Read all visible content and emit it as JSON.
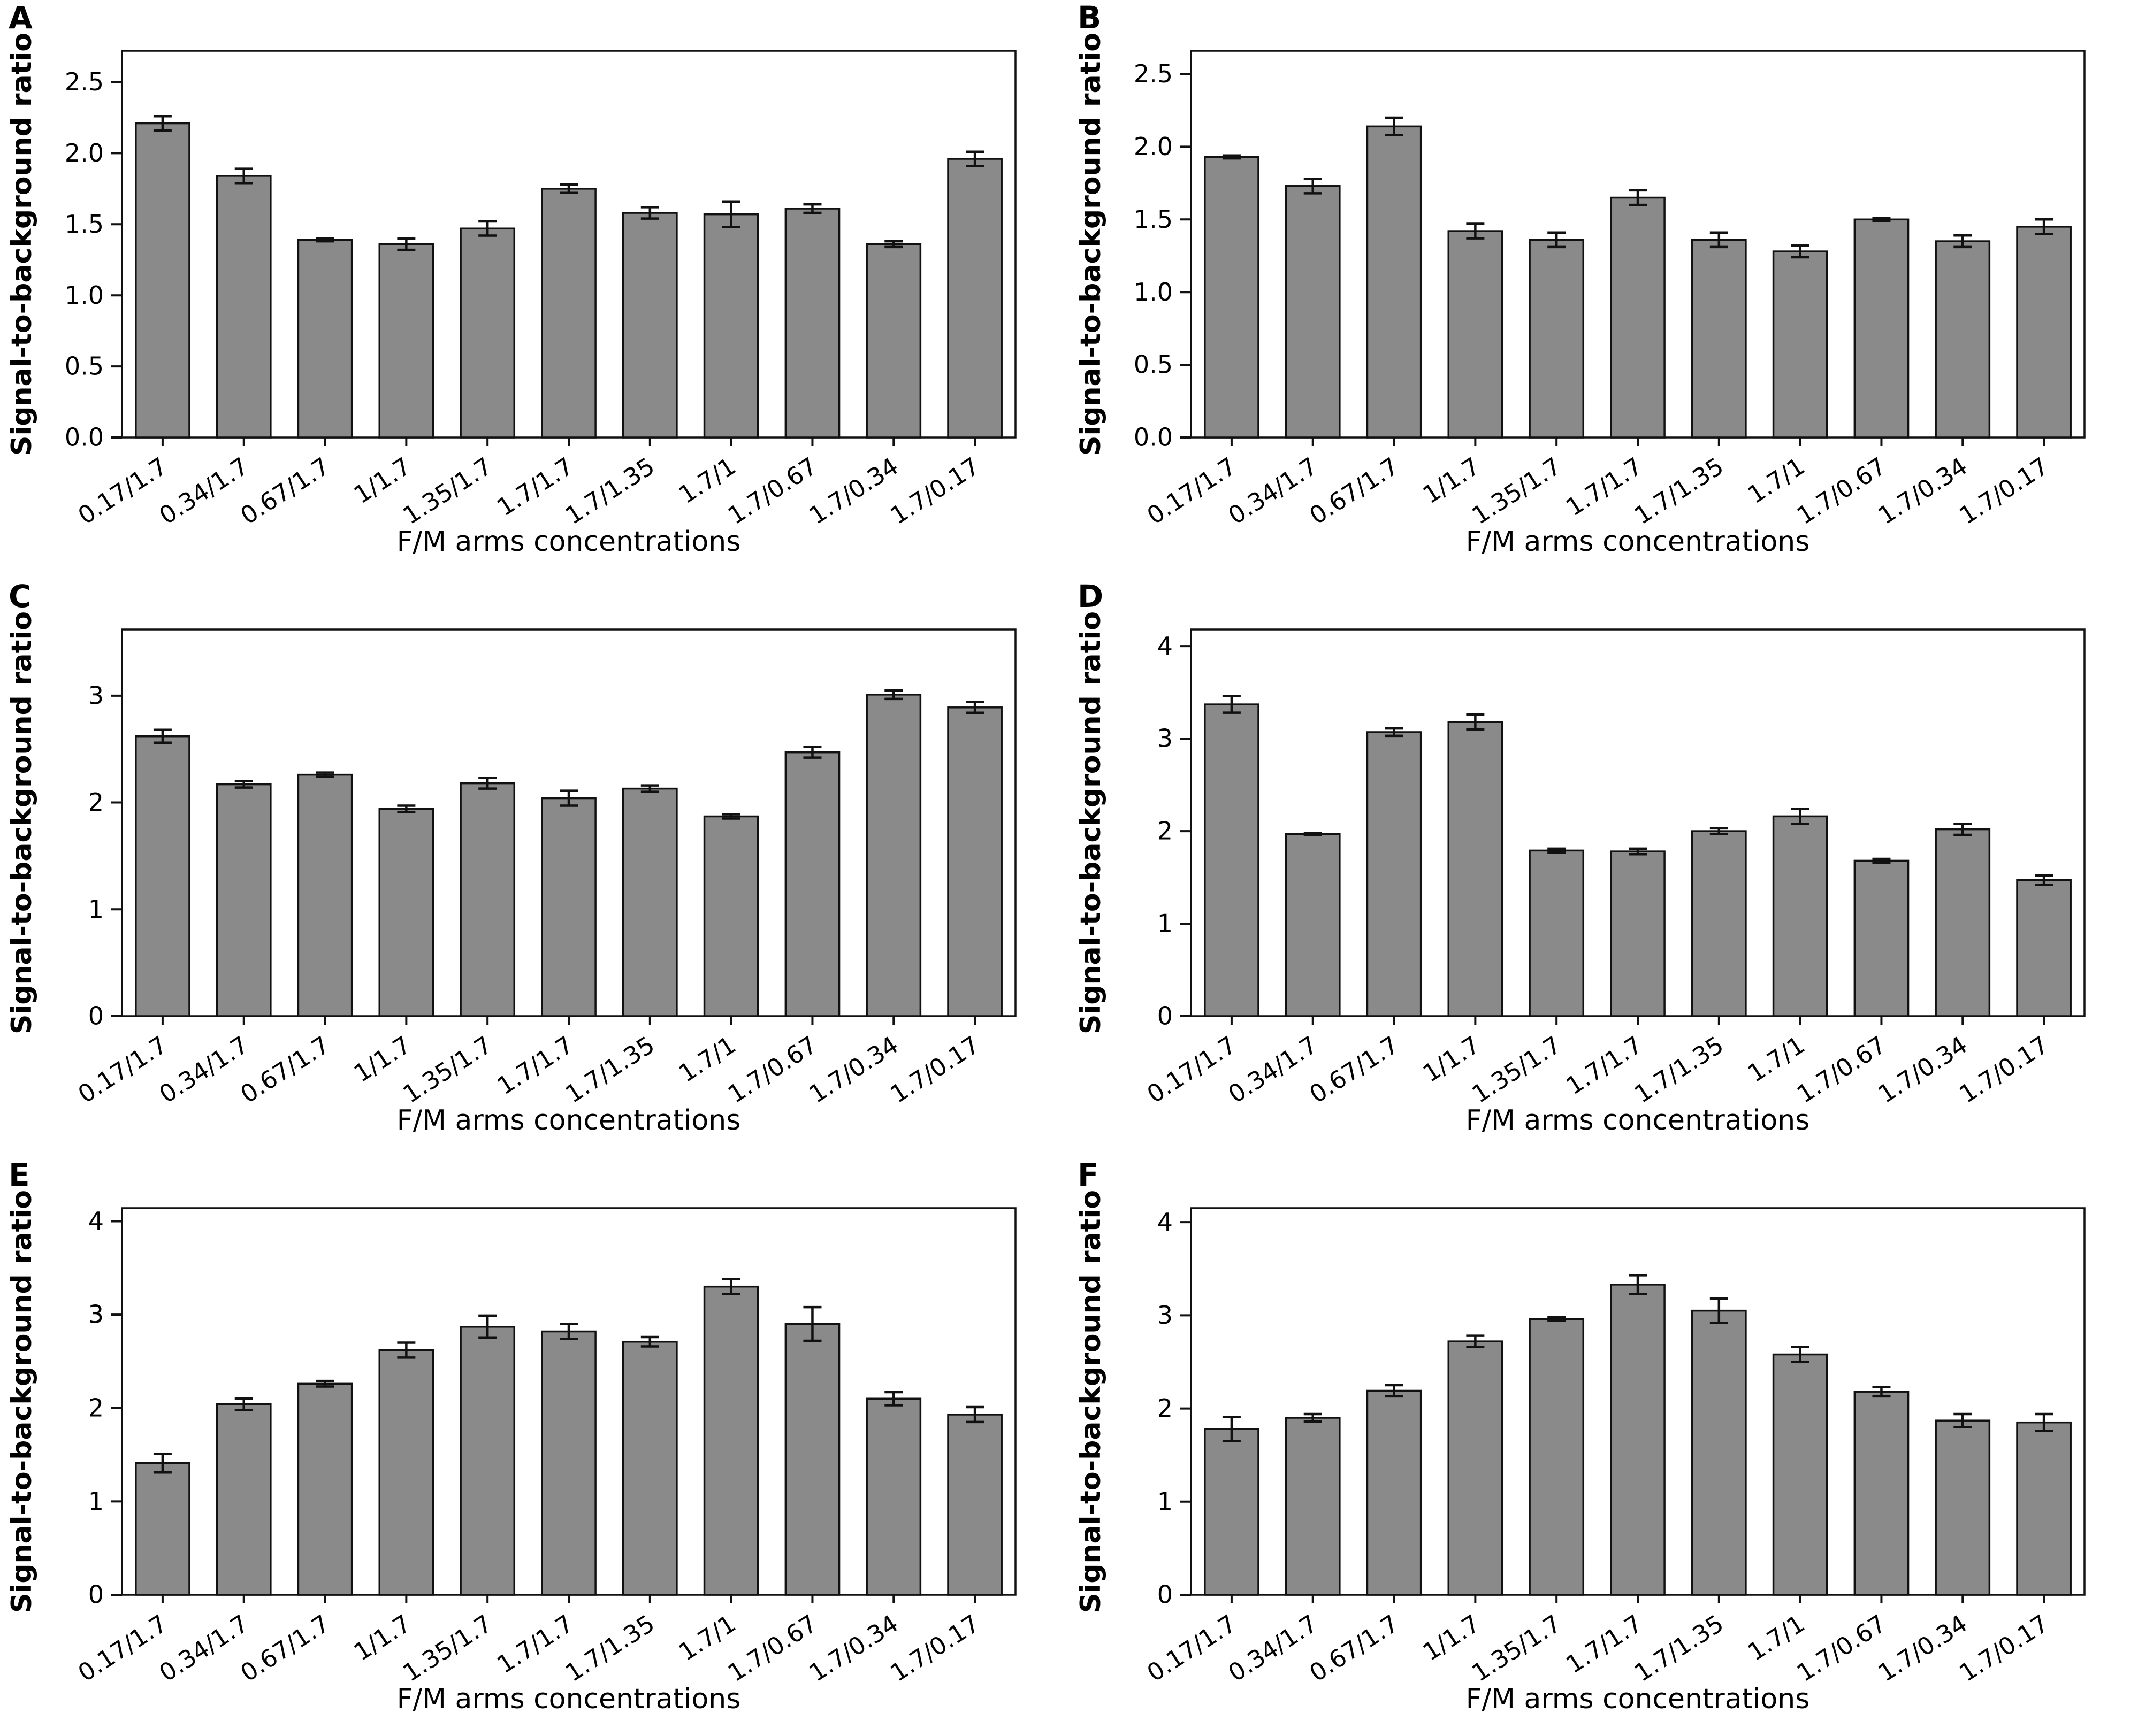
{
  "chart_data": [
    {
      "type": "bar",
      "title": "A",
      "categories": [
        "0.17/1.7",
        "0.34/1.7",
        "0.67/1.7",
        "1/1.7",
        "1.35/1.7",
        "1.7/1.7",
        "1.7/1.35",
        "1.7/1",
        "1.7/0.67",
        "1.7/0.34",
        "1.7/0.17"
      ],
      "values": [
        2.21,
        1.84,
        1.39,
        1.36,
        1.47,
        1.75,
        1.58,
        1.57,
        1.61,
        1.36,
        1.96
      ],
      "errors": [
        0.05,
        0.05,
        0.01,
        0.04,
        0.05,
        0.03,
        0.04,
        0.09,
        0.03,
        0.02,
        0.05
      ],
      "xlabel": "F/M arms concentrations",
      "ylabel": "Signal-to-background ratio",
      "ylim": [
        0,
        2.72
      ],
      "yticks": [
        0,
        0.5,
        1,
        1.5,
        2,
        2.5
      ],
      "ytick_labels": [
        "0.0",
        "0.5",
        "1.0",
        "1.5",
        "2.0",
        "2.5"
      ],
      "grid": false,
      "legend": null,
      "bar_color": "#8a8a8a",
      "bar_edge_color": "#111111"
    },
    {
      "type": "bar",
      "title": "B",
      "categories": [
        "0.17/1.7",
        "0.34/1.7",
        "0.67/1.7",
        "1/1.7",
        "1.35/1.7",
        "1.7/1.7",
        "1.7/1.35",
        "1.7/1",
        "1.7/0.67",
        "1.7/0.34",
        "1.7/0.17"
      ],
      "values": [
        1.93,
        1.73,
        2.14,
        1.42,
        1.36,
        1.65,
        1.36,
        1.28,
        1.5,
        1.35,
        1.45
      ],
      "errors": [
        0.01,
        0.05,
        0.06,
        0.05,
        0.05,
        0.05,
        0.05,
        0.04,
        0.01,
        0.04,
        0.05
      ],
      "xlabel": "F/M arms concentrations",
      "ylabel": "Signal-to-background ratio",
      "ylim": [
        0,
        2.66
      ],
      "yticks": [
        0,
        0.5,
        1,
        1.5,
        2,
        2.5
      ],
      "ytick_labels": [
        "0.0",
        "0.5",
        "1.0",
        "1.5",
        "2.0",
        "2.5"
      ],
      "grid": false,
      "legend": null,
      "bar_color": "#8a8a8a",
      "bar_edge_color": "#111111"
    },
    {
      "type": "bar",
      "title": "C",
      "categories": [
        "0.17/1.7",
        "0.34/1.7",
        "0.67/1.7",
        "1/1.7",
        "1.35/1.7",
        "1.7/1.7",
        "1.7/1.35",
        "1.7/1",
        "1.7/0.67",
        "1.7/0.34",
        "1.7/0.17"
      ],
      "values": [
        2.62,
        2.17,
        2.26,
        1.94,
        2.18,
        2.04,
        2.13,
        1.87,
        2.47,
        3.01,
        2.89
      ],
      "errors": [
        0.06,
        0.03,
        0.02,
        0.03,
        0.05,
        0.07,
        0.03,
        0.02,
        0.05,
        0.04,
        0.05
      ],
      "xlabel": "F/M arms concentrations",
      "ylabel": "Signal-to-background ratio",
      "ylim": [
        0,
        3.62
      ],
      "yticks": [
        0,
        1,
        2,
        3
      ],
      "ytick_labels": [
        "0",
        "1",
        "2",
        "3"
      ],
      "grid": false,
      "legend": null,
      "bar_color": "#8a8a8a",
      "bar_edge_color": "#111111"
    },
    {
      "type": "bar",
      "title": "D",
      "categories": [
        "0.17/1.7",
        "0.34/1.7",
        "0.67/1.7",
        "1/1.7",
        "1.35/1.7",
        "1.7/1.7",
        "1.7/1.35",
        "1.7/1",
        "1.7/0.67",
        "1.7/0.34",
        "1.7/0.17"
      ],
      "values": [
        3.37,
        1.97,
        3.07,
        3.18,
        1.79,
        1.78,
        2.0,
        2.16,
        1.68,
        2.02,
        1.47
      ],
      "errors": [
        0.09,
        0.01,
        0.04,
        0.08,
        0.02,
        0.03,
        0.03,
        0.08,
        0.02,
        0.06,
        0.05
      ],
      "xlabel": "F/M arms concentrations",
      "ylabel": "Signal-to-background ratio",
      "ylim": [
        0,
        4.18
      ],
      "yticks": [
        0,
        1,
        2,
        3,
        4
      ],
      "ytick_labels": [
        "0",
        "1",
        "2",
        "3",
        "4"
      ],
      "grid": false,
      "legend": null,
      "bar_color": "#8a8a8a",
      "bar_edge_color": "#111111"
    },
    {
      "type": "bar",
      "title": "E",
      "categories": [
        "0.17/1.7",
        "0.34/1.7",
        "0.67/1.7",
        "1/1.7",
        "1.35/1.7",
        "1.7/1.7",
        "1.7/1.35",
        "1.7/1",
        "1.7/0.67",
        "1.7/0.34",
        "1.7/0.17"
      ],
      "values": [
        1.41,
        2.04,
        2.26,
        2.62,
        2.87,
        2.82,
        2.71,
        3.3,
        2.9,
        2.1,
        1.93
      ],
      "errors": [
        0.1,
        0.06,
        0.03,
        0.08,
        0.12,
        0.08,
        0.05,
        0.08,
        0.18,
        0.07,
        0.08
      ],
      "xlabel": "F/M arms concentrations",
      "ylabel": "Signal-to-background ratio",
      "ylim": [
        0,
        4.14
      ],
      "yticks": [
        0,
        1,
        2,
        3,
        4
      ],
      "ytick_labels": [
        "0",
        "1",
        "2",
        "3",
        "4"
      ],
      "grid": false,
      "legend": null,
      "bar_color": "#8a8a8a",
      "bar_edge_color": "#111111"
    },
    {
      "type": "bar",
      "title": "F",
      "categories": [
        "0.17/1.7",
        "0.34/1.7",
        "0.67/1.7",
        "1/1.7",
        "1.35/1.7",
        "1.7/1.7",
        "1.7/1.35",
        "1.7/1",
        "1.7/0.67",
        "1.7/0.34",
        "1.7/0.17"
      ],
      "values": [
        1.78,
        1.9,
        2.19,
        2.72,
        2.96,
        3.33,
        3.05,
        2.58,
        2.18,
        1.87,
        1.85
      ],
      "errors": [
        0.13,
        0.04,
        0.06,
        0.06,
        0.02,
        0.1,
        0.13,
        0.08,
        0.05,
        0.07,
        0.09
      ],
      "xlabel": "F/M arms concentrations",
      "ylabel": "Signal-to-background ratio",
      "ylim": [
        0,
        4.15
      ],
      "yticks": [
        0,
        1,
        2,
        3,
        4
      ],
      "ytick_labels": [
        "0",
        "1",
        "2",
        "3",
        "4"
      ],
      "grid": false,
      "legend": null,
      "bar_color": "#8a8a8a",
      "bar_edge_color": "#111111"
    }
  ]
}
